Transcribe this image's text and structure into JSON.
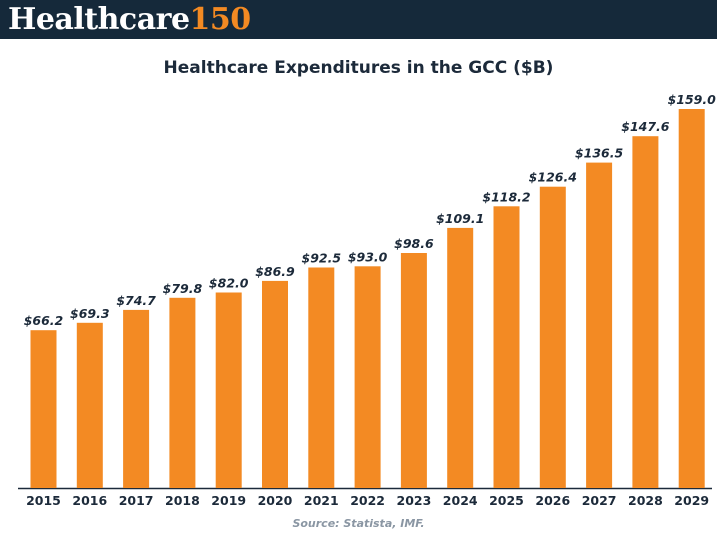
{
  "header": {
    "brand_main": "Healthcare",
    "brand_accent": "150",
    "background_color": "#15293a",
    "accent_color": "#f38a23"
  },
  "chart_data": {
    "type": "bar",
    "title": "Healthcare Expenditures in the GCC ($B)",
    "categories": [
      "2015",
      "2016",
      "2017",
      "2018",
      "2019",
      "2020",
      "2021",
      "2022",
      "2023",
      "2024",
      "2025",
      "2026",
      "2027",
      "2028",
      "2029"
    ],
    "values": [
      66.2,
      69.3,
      74.7,
      79.8,
      82.0,
      86.9,
      92.5,
      93.0,
      98.6,
      109.1,
      118.2,
      126.4,
      136.5,
      147.6,
      159.0
    ],
    "data_labels": [
      "$66.2",
      "$69.3",
      "$74.7",
      "$79.8",
      "$82.0",
      "$86.9",
      "$92.5",
      "$93.0",
      "$98.6",
      "$109.1",
      "$118.2",
      "$126.4",
      "$136.5",
      "$147.6",
      "$159.0"
    ],
    "xlabel": "",
    "ylabel": "",
    "ylim": [
      0,
      159
    ],
    "grid": false,
    "bar_color": "#f38a23",
    "source": "Source: Statista, IMF."
  }
}
